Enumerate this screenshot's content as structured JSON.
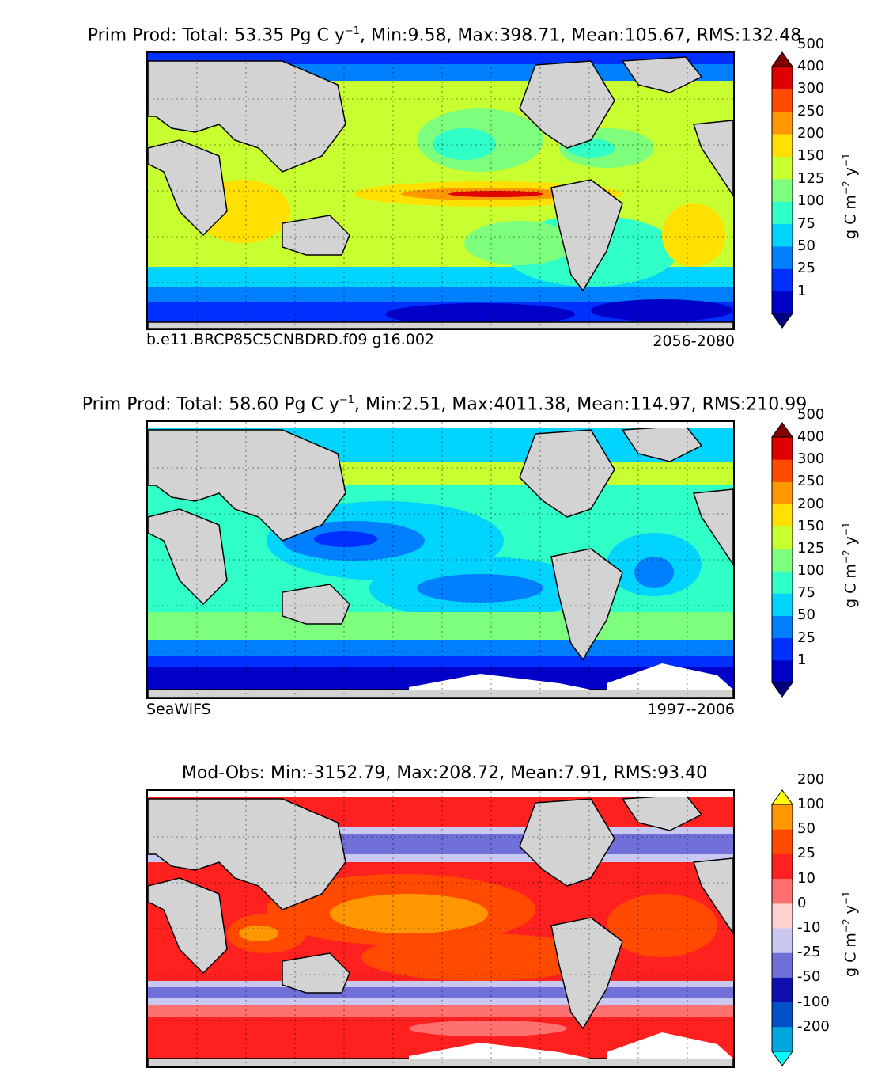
{
  "panels": [
    {
      "title_prefix": "Prim Prod: Total: 53.35 Pg C y",
      "title_exp": "−1",
      "title_suffix": ", Min:9.58, Max:398.71, Mean:105.67, RMS:132.48",
      "caption_left": "b.e11.BRCP85C5CNBDRD.f09 g16.002",
      "caption_right": "2056-2080",
      "colorbar": {
        "labels": [
          "1",
          "25",
          "50",
          "75",
          "100",
          "125",
          "150",
          "200",
          "250",
          "300",
          "400",
          "500"
        ],
        "colors": [
          "#00007f",
          "#0000c8",
          "#0030ff",
          "#0080ff",
          "#00d4ff",
          "#30ffc8",
          "#7dff7d",
          "#c8ff30",
          "#ffe000",
          "#ff9800",
          "#ff4a00",
          "#e00000",
          "#800000"
        ],
        "unit_text": "g C m",
        "unit_exp1": "−2",
        "unit_mid": " y",
        "unit_exp2": "−1"
      }
    },
    {
      "title_prefix": "Prim Prod: Total: 58.60 Pg C y",
      "title_exp": "−1",
      "title_suffix": ", Min:2.51, Max:4011.38, Mean:114.97, RMS:210.99",
      "caption_left": "SeaWiFS",
      "caption_right": "1997--2006",
      "colorbar": {
        "labels": [
          "1",
          "25",
          "50",
          "75",
          "100",
          "125",
          "150",
          "200",
          "250",
          "300",
          "400",
          "500"
        ],
        "colors": [
          "#00007f",
          "#0000c8",
          "#0030ff",
          "#0080ff",
          "#00d4ff",
          "#30ffc8",
          "#7dff7d",
          "#c8ff30",
          "#ffe000",
          "#ff9800",
          "#ff4a00",
          "#e00000",
          "#800000"
        ],
        "unit_text": "g C m",
        "unit_exp1": "−2",
        "unit_mid": " y",
        "unit_exp2": "−1"
      }
    },
    {
      "title_prefix": "Mod-Obs: Min:-3152.79, Max:208.72, Mean:7.91, RMS:93.40",
      "title_exp": "",
      "title_suffix": "",
      "caption_left": "",
      "caption_right": "",
      "colorbar": {
        "labels": [
          "-200",
          "-100",
          "-50",
          "-25",
          "-10",
          "0",
          "10",
          "25",
          "50",
          "100",
          "200"
        ],
        "colors": [
          "#00ffff",
          "#00a8e0",
          "#0050c8",
          "#1010b0",
          "#7070d8",
          "#c8c8f0",
          "#ffd0d0",
          "#ff7070",
          "#ff2020",
          "#ff4a00",
          "#ff9800",
          "#ffff00"
        ],
        "unit_text": "g C m",
        "unit_exp1": "−2",
        "unit_mid": " y",
        "unit_exp2": "−1"
      }
    }
  ],
  "map": {
    "land_color": "#d3d3d3",
    "gridline_style": "dotted"
  }
}
